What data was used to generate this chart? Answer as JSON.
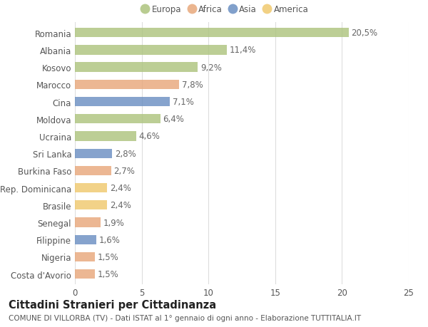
{
  "categories": [
    "Romania",
    "Albania",
    "Kosovo",
    "Marocco",
    "Cina",
    "Moldova",
    "Ucraina",
    "Sri Lanka",
    "Burkina Faso",
    "Rep. Dominicana",
    "Brasile",
    "Senegal",
    "Filippine",
    "Nigeria",
    "Costa d'Avorio"
  ],
  "values": [
    20.5,
    11.4,
    9.2,
    7.8,
    7.1,
    6.4,
    4.6,
    2.8,
    2.7,
    2.4,
    2.4,
    1.9,
    1.6,
    1.5,
    1.5
  ],
  "labels": [
    "20,5%",
    "11,4%",
    "9,2%",
    "7,8%",
    "7,1%",
    "6,4%",
    "4,6%",
    "2,8%",
    "2,7%",
    "2,4%",
    "2,4%",
    "1,9%",
    "1,6%",
    "1,5%",
    "1,5%"
  ],
  "continents": [
    "Europa",
    "Europa",
    "Europa",
    "Africa",
    "Asia",
    "Europa",
    "Europa",
    "Asia",
    "Africa",
    "America",
    "America",
    "Africa",
    "Asia",
    "Africa",
    "Africa"
  ],
  "continent_colors": {
    "Europa": "#adc47e",
    "Africa": "#e8a87c",
    "Asia": "#6b8fc2",
    "America": "#f0c96e"
  },
  "legend_order": [
    "Europa",
    "Africa",
    "Asia",
    "America"
  ],
  "title": "Cittadini Stranieri per Cittadinanza",
  "subtitle": "COMUNE DI VILLORBA (TV) - Dati ISTAT al 1° gennaio di ogni anno - Elaborazione TUTTITALIA.IT",
  "xlim": [
    0,
    25
  ],
  "xticks": [
    0,
    5,
    10,
    15,
    20,
    25
  ],
  "background_color": "#ffffff",
  "grid_color": "#dddddd",
  "bar_height": 0.55,
  "label_fontsize": 8.5,
  "tick_fontsize": 8.5,
  "title_fontsize": 10.5,
  "subtitle_fontsize": 7.5
}
